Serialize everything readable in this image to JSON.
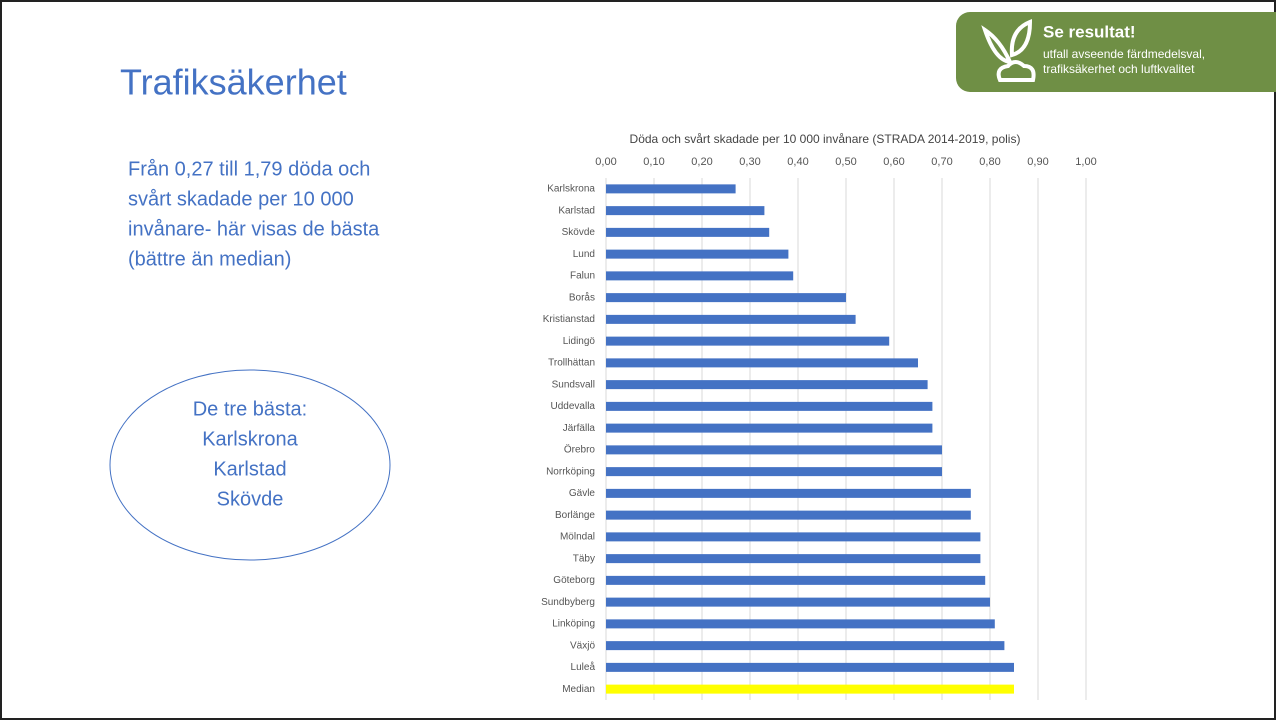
{
  "slide_title": "Trafiksäkerhet",
  "intro_lines": [
    "Från 0,27 till 1,79 döda och",
    "svårt skadade per 10 000",
    "invånare- här visas de bästa",
    "(bättre än median)"
  ],
  "callout_lines": [
    "De tre bästa:",
    "Karlskrona",
    "Karlstad",
    "Skövde"
  ],
  "badge": {
    "title": "Se resultat!",
    "lines": [
      "utfall avseende färdmedelsval,",
      "trafiksäkerhet och luftkvalitet"
    ]
  },
  "chart_data": {
    "type": "hbar",
    "title": "Döda och svårt skadade per 10 000 invånare (STRADA 2014-2019, polis)",
    "categories": [
      "Karlskrona",
      "Karlstad",
      "Skövde",
      "Lund",
      "Falun",
      "Borås",
      "Kristianstad",
      "Lidingö",
      "Trollhättan",
      "Sundsvall",
      "Uddevalla",
      "Järfälla",
      "Örebro",
      "Norrköping",
      "Gävle",
      "Borlänge",
      "Mölndal",
      "Täby",
      "Göteborg",
      "Sundbyberg",
      "Linköping",
      "Växjö",
      "Luleå",
      "Median"
    ],
    "values": [
      0.27,
      0.33,
      0.34,
      0.38,
      0.39,
      0.5,
      0.52,
      0.59,
      0.65,
      0.67,
      0.68,
      0.68,
      0.7,
      0.7,
      0.76,
      0.76,
      0.78,
      0.78,
      0.79,
      0.8,
      0.81,
      0.83,
      0.85,
      0.85
    ],
    "colors": [
      "#4472c4",
      "#4472c4",
      "#4472c4",
      "#4472c4",
      "#4472c4",
      "#4472c4",
      "#4472c4",
      "#4472c4",
      "#4472c4",
      "#4472c4",
      "#4472c4",
      "#4472c4",
      "#4472c4",
      "#4472c4",
      "#4472c4",
      "#4472c4",
      "#4472c4",
      "#4472c4",
      "#4472c4",
      "#4472c4",
      "#4472c4",
      "#4472c4",
      "#4472c4",
      "#ffff00"
    ],
    "xlim": [
      0,
      1
    ],
    "xticks": [
      {
        "value": 0,
        "label": "0,00"
      },
      {
        "value": 0.1,
        "label": "0,10"
      },
      {
        "value": 0.2,
        "label": "0,20"
      },
      {
        "value": 0.3,
        "label": "0,30"
      },
      {
        "value": 0.4,
        "label": "0,40"
      },
      {
        "value": 0.5,
        "label": "0,50"
      },
      {
        "value": 0.6,
        "label": "0,60"
      },
      {
        "value": 0.7,
        "label": "0,70"
      },
      {
        "value": 0.8,
        "label": "0,80"
      },
      {
        "value": 0.9,
        "label": "0,90"
      },
      {
        "value": 1,
        "label": "1,00"
      }
    ],
    "grid": true
  }
}
